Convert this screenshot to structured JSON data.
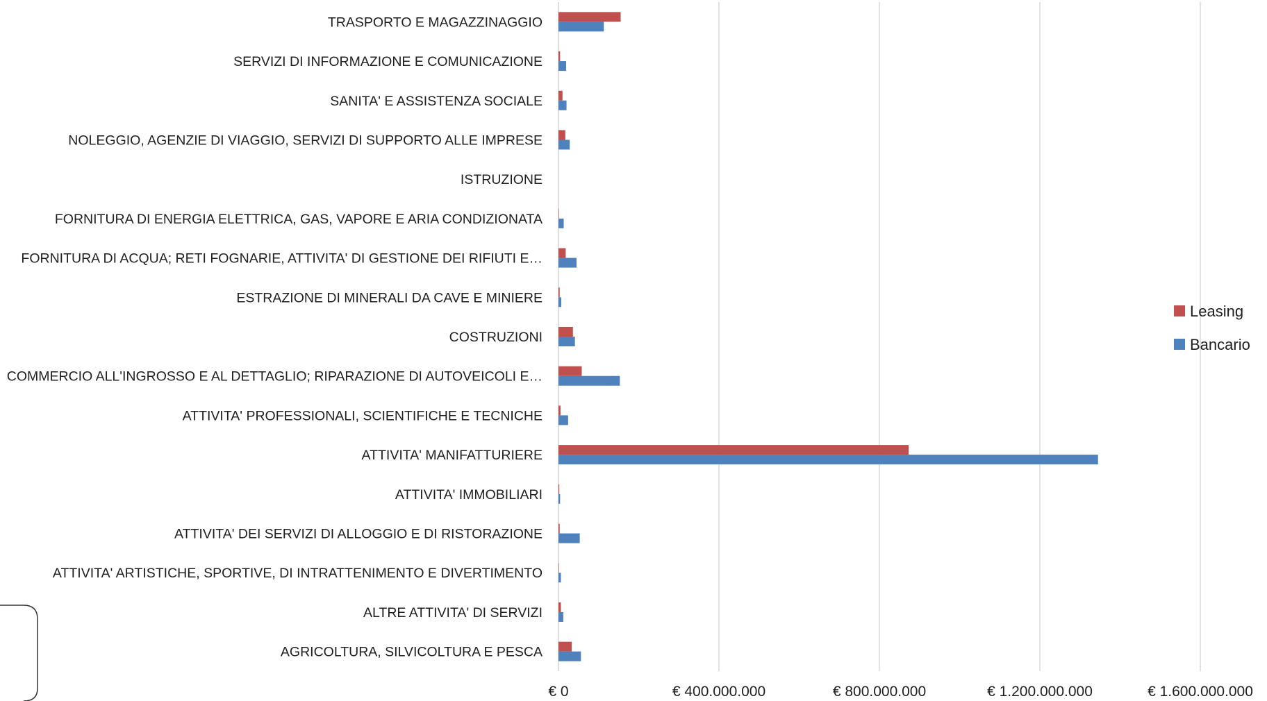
{
  "chart_data": {
    "type": "bar",
    "orientation": "horizontal",
    "title": "",
    "xlabel": "",
    "ylabel": "",
    "xlim": [
      0,
      1600000000
    ],
    "x_ticks": [
      0,
      400000000,
      800000000,
      1200000000,
      1600000000
    ],
    "x_tick_labels": [
      "€ 0",
      "€ 400.000.000",
      "€ 800.000.000",
      "€ 1.200.000.000",
      "€ 1.600.000.000"
    ],
    "grid": "vertical",
    "legend_position": "right",
    "categories": [
      "TRASPORTO E MAGAZZINAGGIO",
      "SERVIZI DI INFORMAZIONE E COMUNICAZIONE",
      "SANITA' E ASSISTENZA SOCIALE",
      "NOLEGGIO, AGENZIE DI VIAGGIO, SERVIZI DI SUPPORTO ALLE IMPRESE",
      "ISTRUZIONE",
      "FORNITURA DI ENERGIA ELETTRICA, GAS, VAPORE E ARIA CONDIZIONATA",
      "FORNITURA DI ACQUA; RETI FOGNARIE, ATTIVITA' DI GESTIONE DEI RIFIUTI E…",
      "ESTRAZIONE DI MINERALI DA CAVE E MINIERE",
      "COSTRUZIONI",
      "COMMERCIO ALL'INGROSSO E AL DETTAGLIO; RIPARAZIONE DI AUTOVEICOLI E…",
      "ATTIVITA' PROFESSIONALI, SCIENTIFICHE E TECNICHE",
      "ATTIVITA' MANIFATTURIERE",
      "ATTIVITA' IMMOBILIARI",
      "ATTIVITA' DEI SERVIZI DI ALLOGGIO E DI RISTORAZIONE",
      "ATTIVITA' ARTISTICHE, SPORTIVE, DI INTRATTENIMENTO E DIVERTIMENTO",
      "ALTRE ATTIVITA' DI SERVIZI",
      "AGRICOLTURA, SILVICOLTURA E PESCA"
    ],
    "series": [
      {
        "name": "Leasing",
        "color": "#C0504D",
        "values": [
          155000000,
          4000000,
          10000000,
          17000000,
          0,
          1000000,
          18000000,
          3000000,
          36000000,
          58000000,
          5000000,
          873000000,
          2000000,
          3000000,
          1000000,
          6000000,
          33000000
        ]
      },
      {
        "name": "Bancario",
        "color": "#4F81BD",
        "values": [
          113000000,
          19000000,
          20000000,
          28000000,
          0,
          13000000,
          45000000,
          7000000,
          41000000,
          153000000,
          24000000,
          1345000000,
          4000000,
          53000000,
          6000000,
          12000000,
          56000000
        ]
      }
    ]
  }
}
